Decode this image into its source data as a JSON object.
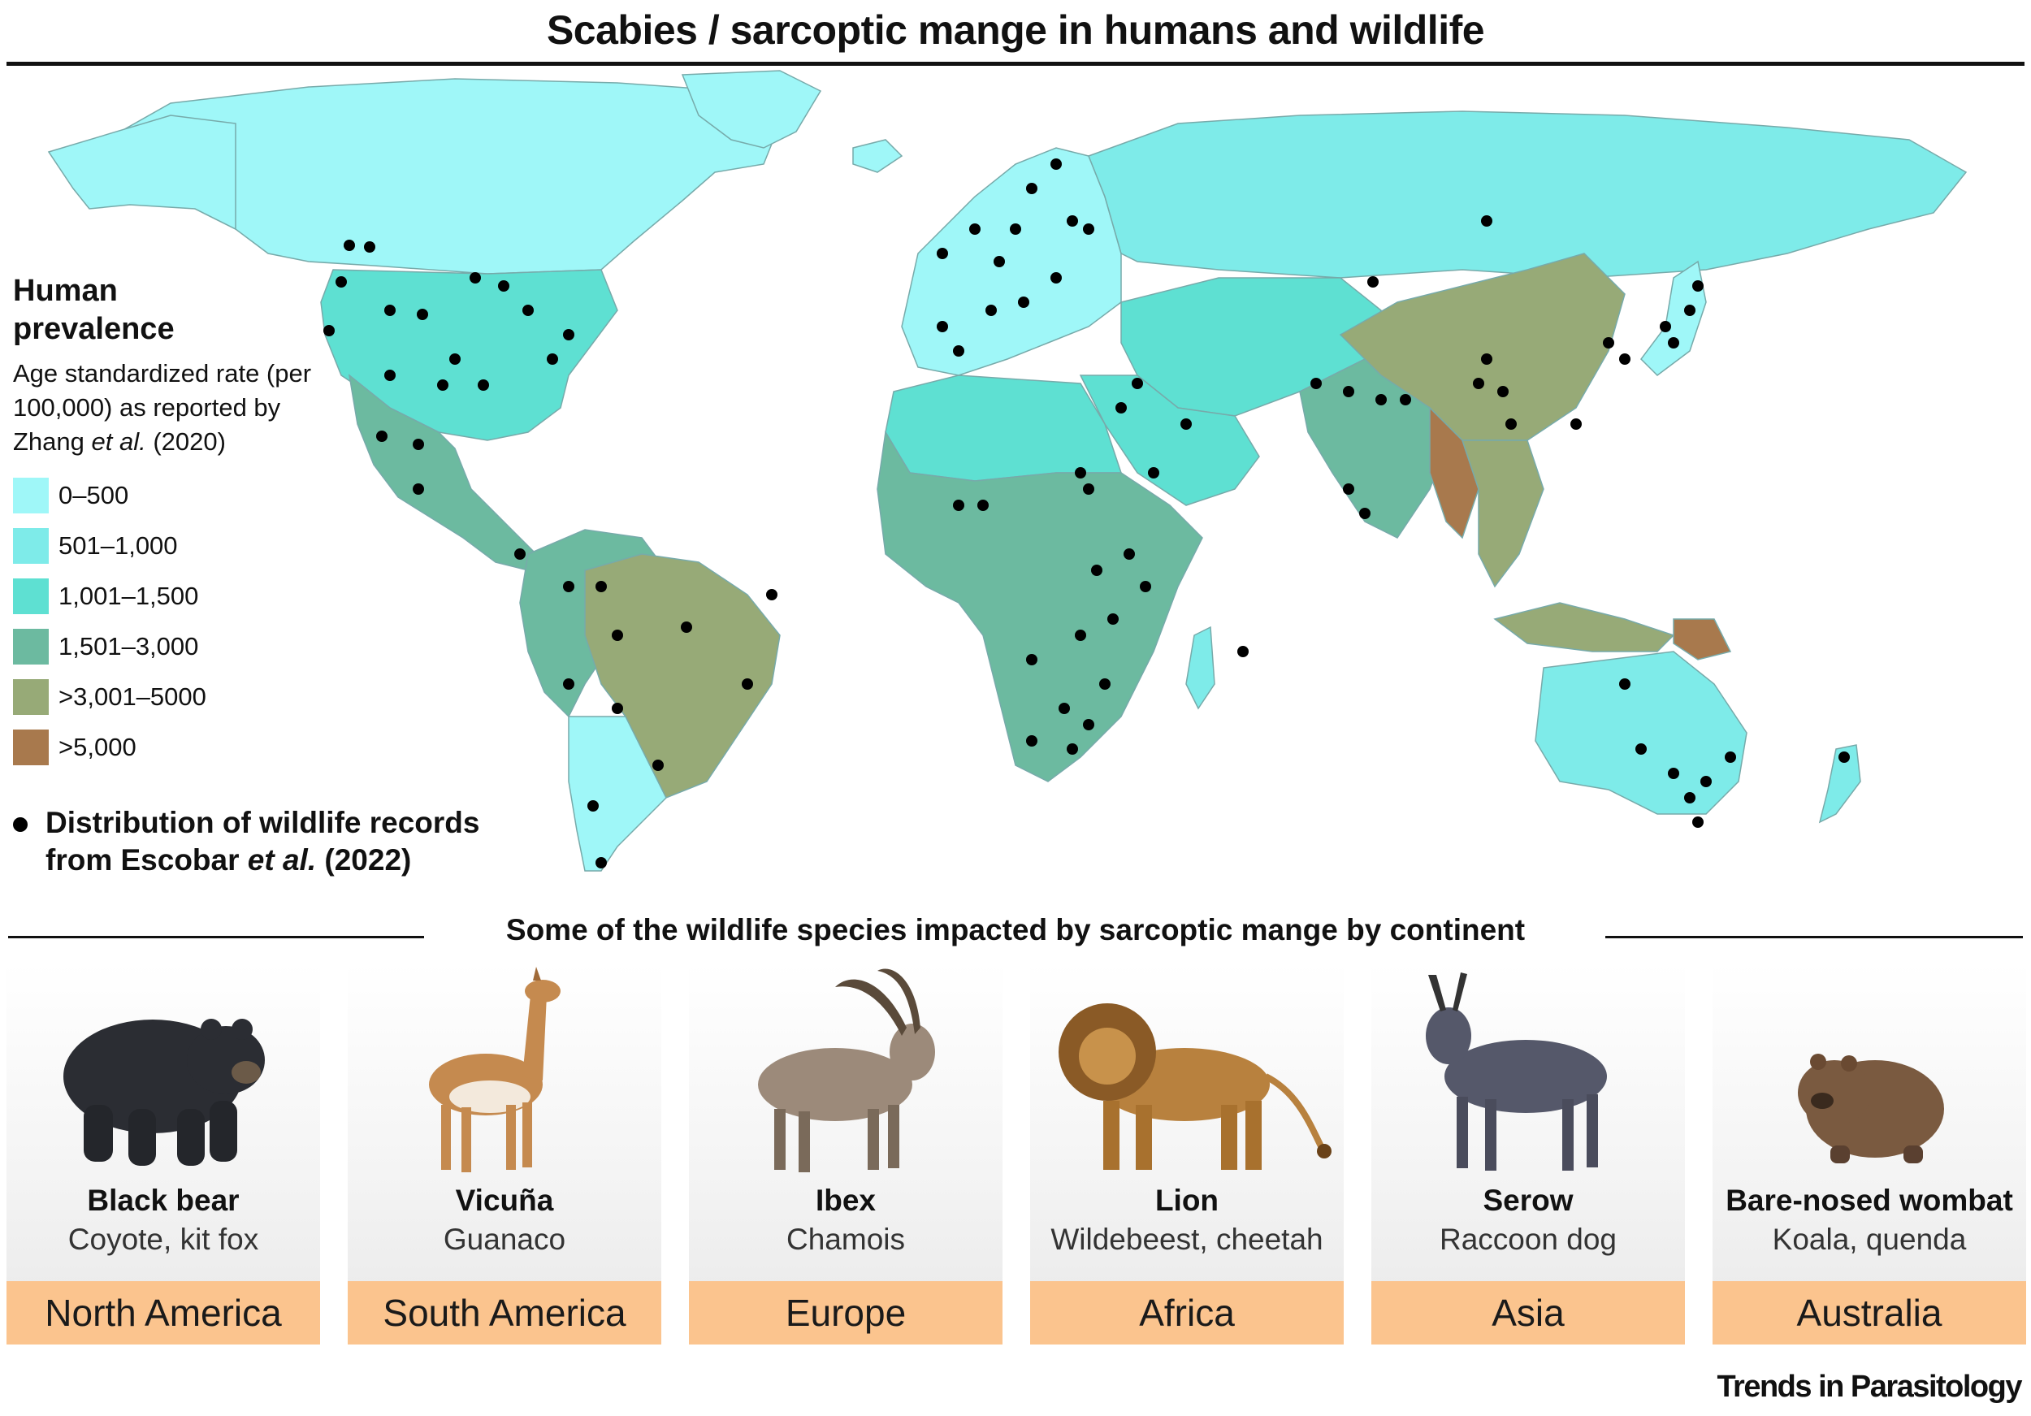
{
  "title": "Scabies / sarcoptic mange in humans and wildlife",
  "legend": {
    "heading": "Human prevalence",
    "subtitle_pre": "Age standardized rate (per 100,000) as reported by Zhang ",
    "subtitle_italic": "et al.",
    "subtitle_post": " (2020)",
    "classes": [
      {
        "label": "0–500",
        "color": "#9ff7f8"
      },
      {
        "label": "501–1,000",
        "color": "#7eebe9"
      },
      {
        "label": "1,001–1,500",
        "color": "#5ee0d2"
      },
      {
        "label": "1,501–3,000",
        "color": "#6cbaa0"
      },
      {
        "label": ">3,001–5000",
        "color": "#97aa77"
      },
      {
        "label": ">5,000",
        "color": "#a8794d"
      }
    ]
  },
  "wildlife_key": {
    "line1": "Distribution of wildlife records",
    "line2_pre": "from Escobar ",
    "line2_italic": "et al.",
    "line2_post": " (2022)"
  },
  "section_title": "Some of the wildlife species impacted by sarcoptic mange by continent",
  "cards": [
    {
      "name": "Black bear",
      "others": "Coyote, kit fox",
      "continent": "North America",
      "icon": "black-bear-illustration"
    },
    {
      "name": "Vicuña",
      "others": "Guanaco",
      "continent": "South America",
      "icon": "vicuna-illustration"
    },
    {
      "name": "Ibex",
      "others": "Chamois",
      "continent": "Europe",
      "icon": "ibex-illustration"
    },
    {
      "name": "Lion",
      "others": "Wildebeest, cheetah",
      "continent": "Africa",
      "icon": "lion-illustration"
    },
    {
      "name": "Serow",
      "others": "Raccoon dog",
      "continent": "Asia",
      "icon": "serow-illustration"
    },
    {
      "name": "Bare-nosed wombat",
      "others": "Koala, quenda",
      "continent": "Australia",
      "icon": "wombat-illustration"
    }
  ],
  "credit": "Trends in Parasitology"
}
